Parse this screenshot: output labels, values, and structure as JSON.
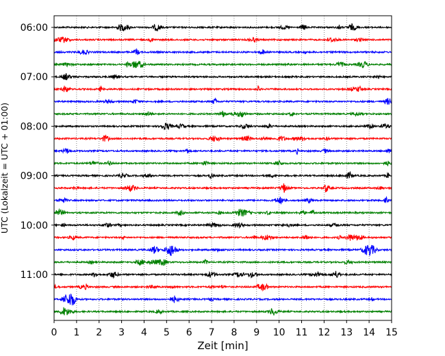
{
  "chart_data": {
    "type": "line",
    "title": "",
    "xlabel": "Zeit  [min]",
    "ylabel": "UTC (Lokalzeit = UTC + 01:00)",
    "xlim": [
      0,
      15
    ],
    "x_ticks": [
      "0",
      "1",
      "2",
      "3",
      "4",
      "5",
      "6",
      "7",
      "8",
      "9",
      "10",
      "11",
      "12",
      "13",
      "14",
      "15"
    ],
    "y_ticks": [
      "06:00",
      "07:00",
      "08:00",
      "09:00",
      "10:00",
      "11:00"
    ],
    "grid": "vertical dotted lines at each minute",
    "trace_interval_min": 15,
    "first_trace": "06:00",
    "trace_colors": [
      "#000000",
      "#ff0000",
      "#0000ff",
      "#008000"
    ],
    "traces": [
      {
        "start": "06:00",
        "color": "#000000"
      },
      {
        "start": "06:15",
        "color": "#ff0000"
      },
      {
        "start": "06:30",
        "color": "#0000ff"
      },
      {
        "start": "06:45",
        "color": "#008000"
      },
      {
        "start": "07:00",
        "color": "#000000"
      },
      {
        "start": "07:15",
        "color": "#ff0000"
      },
      {
        "start": "07:30",
        "color": "#0000ff"
      },
      {
        "start": "07:45",
        "color": "#008000"
      },
      {
        "start": "08:00",
        "color": "#000000"
      },
      {
        "start": "08:15",
        "color": "#ff0000"
      },
      {
        "start": "08:30",
        "color": "#0000ff"
      },
      {
        "start": "08:45",
        "color": "#008000"
      },
      {
        "start": "09:00",
        "color": "#000000"
      },
      {
        "start": "09:15",
        "color": "#ff0000"
      },
      {
        "start": "09:30",
        "color": "#0000ff"
      },
      {
        "start": "09:45",
        "color": "#008000"
      },
      {
        "start": "10:00",
        "color": "#000000"
      },
      {
        "start": "10:15",
        "color": "#ff0000"
      },
      {
        "start": "10:30",
        "color": "#0000ff"
      },
      {
        "start": "10:45",
        "color": "#008000"
      },
      {
        "start": "11:00",
        "color": "#000000"
      },
      {
        "start": "11:15",
        "color": "#ff0000"
      },
      {
        "start": "11:30",
        "color": "#0000ff"
      },
      {
        "start": "11:45",
        "color": "#008000"
      }
    ]
  }
}
